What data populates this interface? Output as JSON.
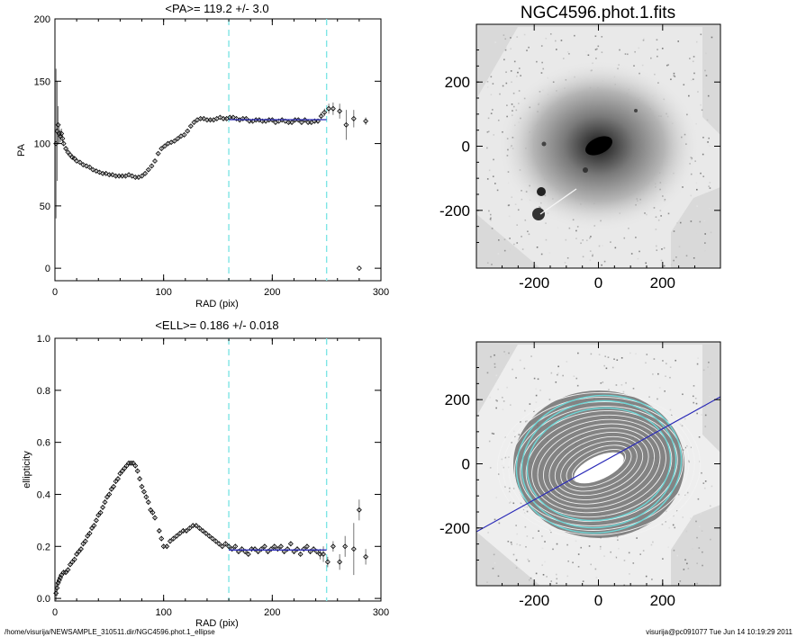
{
  "footer": {
    "path": "/home/visurija/NEWSAMPLE_310511.dir/NGC4596.phot.1_ellipse",
    "user_stamp": "visurija@pc091077  Tue Jun 14 10:19:29 2011"
  },
  "colors": {
    "fit_line": "#2b2bb8",
    "marker": "#000000",
    "dashed_bounds": "#7fe5e5",
    "contours_cyan": "#6fd6d6",
    "image_bg": "#d9d9d9"
  },
  "bounds": {
    "rmin": 160,
    "rmax": 250
  },
  "chart_data": [
    {
      "type": "scatter",
      "title": "<PA>= 119.2 +/-   3.0",
      "xlabel": "RAD (pix)",
      "ylabel": "PA",
      "xlim": [
        0,
        300
      ],
      "ylim": [
        -10,
        200
      ],
      "xticks": [
        "0",
        "100",
        "200",
        "300"
      ],
      "yticks": [
        "0",
        "50",
        "100",
        "150",
        "200"
      ],
      "fit": {
        "value": 119.2,
        "x_range": [
          160,
          250
        ]
      },
      "x": [
        1,
        2,
        3,
        4,
        5,
        6,
        7,
        8,
        10,
        12,
        14,
        16,
        18,
        20,
        23,
        26,
        29,
        32,
        35,
        38,
        41,
        44,
        47,
        50,
        53,
        56,
        59,
        62,
        65,
        68,
        71,
        74,
        77,
        80,
        83,
        86,
        89,
        92,
        95,
        98,
        101,
        104,
        107,
        110,
        113,
        116,
        119,
        122,
        125,
        128,
        131,
        134,
        137,
        140,
        143,
        146,
        149,
        152,
        155,
        158,
        161,
        164,
        167,
        170,
        173,
        176,
        179,
        182,
        185,
        188,
        191,
        194,
        197,
        200,
        203,
        206,
        209,
        212,
        215,
        218,
        221,
        224,
        227,
        230,
        233,
        236,
        239,
        242,
        245,
        248,
        252,
        256,
        262,
        268,
        275,
        280,
        286
      ],
      "y": [
        100,
        110,
        115,
        108,
        106,
        108,
        104,
        100,
        96,
        93,
        91,
        89,
        88,
        86,
        85,
        83,
        82,
        81,
        79,
        78,
        77,
        76,
        76,
        75,
        75,
        74,
        74,
        74,
        74,
        75,
        74,
        73,
        73,
        74,
        76,
        79,
        82,
        86,
        92,
        96,
        98,
        100,
        101,
        102,
        104,
        106,
        107,
        110,
        114,
        117,
        119,
        120,
        120,
        119,
        119,
        119,
        120,
        121,
        120,
        120,
        121,
        121,
        120,
        119,
        120,
        120,
        118,
        118,
        119,
        119,
        118,
        118,
        119,
        119,
        117,
        118,
        119,
        118,
        117,
        117,
        119,
        119,
        117,
        119,
        117,
        117,
        118,
        118,
        122,
        125,
        128,
        128,
        126,
        115,
        120,
        0,
        118
      ],
      "err": [
        60,
        40,
        15,
        8,
        5,
        4,
        3,
        2,
        2,
        1,
        1,
        1,
        1,
        1,
        1,
        1,
        1,
        1,
        1,
        1,
        1,
        1,
        1,
        1,
        1,
        1,
        1,
        1,
        1,
        1,
        1,
        1,
        1,
        1,
        1,
        1,
        1,
        1,
        1,
        1,
        1,
        1,
        1,
        1,
        1,
        1,
        1,
        1,
        1,
        1,
        1,
        1,
        1,
        1,
        1,
        1,
        1,
        1,
        1,
        1,
        1,
        1,
        1,
        1,
        1,
        1,
        1,
        1,
        1,
        1,
        1,
        1,
        1,
        1,
        1,
        1,
        1,
        1,
        1,
        1,
        1,
        1,
        1,
        1,
        1,
        1,
        2,
        2,
        3,
        3,
        4,
        5,
        6,
        12,
        7,
        0,
        3
      ]
    },
    {
      "type": "scatter",
      "title": "<ELL>= 0.186 +/-  0.018",
      "xlabel": "RAD (pix)",
      "ylabel": "ellipticity",
      "xlim": [
        0,
        300
      ],
      "ylim": [
        -0.01,
        1.0
      ],
      "xticks": [
        "0",
        "100",
        "200",
        "300"
      ],
      "yticks": [
        "0.0",
        "0.2",
        "0.4",
        "0.6",
        "0.8",
        "1.0"
      ],
      "fit": {
        "value": 0.186,
        "x_range": [
          160,
          250
        ]
      },
      "x": [
        1,
        2,
        3,
        4,
        5,
        6,
        8,
        10,
        12,
        14,
        16,
        18,
        20,
        22,
        24,
        26,
        28,
        30,
        32,
        34,
        36,
        38,
        40,
        42,
        44,
        46,
        48,
        50,
        52,
        54,
        56,
        58,
        60,
        62,
        64,
        66,
        68,
        70,
        72,
        74,
        76,
        78,
        80,
        82,
        84,
        86,
        88,
        90,
        92,
        96,
        98,
        100,
        103,
        106,
        109,
        112,
        115,
        118,
        121,
        124,
        127,
        130,
        133,
        136,
        139,
        142,
        145,
        148,
        151,
        154,
        157,
        160,
        163,
        166,
        169,
        172,
        175,
        178,
        181,
        184,
        187,
        190,
        193,
        196,
        199,
        202,
        205,
        208,
        211,
        214,
        217,
        220,
        223,
        226,
        229,
        232,
        235,
        238,
        241,
        244,
        247,
        251,
        256,
        262,
        267,
        275,
        280,
        286
      ],
      "y": [
        0.02,
        0.04,
        0.06,
        0.07,
        0.08,
        0.09,
        0.1,
        0.1,
        0.11,
        0.13,
        0.14,
        0.15,
        0.17,
        0.18,
        0.19,
        0.21,
        0.22,
        0.24,
        0.25,
        0.27,
        0.28,
        0.3,
        0.32,
        0.33,
        0.35,
        0.37,
        0.39,
        0.4,
        0.42,
        0.43,
        0.45,
        0.46,
        0.48,
        0.49,
        0.5,
        0.51,
        0.52,
        0.52,
        0.52,
        0.51,
        0.49,
        0.46,
        0.43,
        0.41,
        0.39,
        0.37,
        0.34,
        0.33,
        0.31,
        0.26,
        0.23,
        0.2,
        0.2,
        0.22,
        0.23,
        0.24,
        0.25,
        0.26,
        0.26,
        0.27,
        0.28,
        0.28,
        0.27,
        0.26,
        0.25,
        0.24,
        0.23,
        0.22,
        0.21,
        0.2,
        0.21,
        0.2,
        0.19,
        0.2,
        0.18,
        0.19,
        0.18,
        0.17,
        0.19,
        0.19,
        0.18,
        0.19,
        0.2,
        0.18,
        0.19,
        0.2,
        0.19,
        0.2,
        0.18,
        0.19,
        0.21,
        0.18,
        0.19,
        0.17,
        0.19,
        0.2,
        0.18,
        0.19,
        0.18,
        0.17,
        0.17,
        0.14,
        0.2,
        0.14,
        0.2,
        0.19,
        0.34,
        0.16
      ],
      "err": [
        0.04,
        0.03,
        0.02,
        0.02,
        0.01,
        0.01,
        0.01,
        0.01,
        0.01,
        0.01,
        0.01,
        0.01,
        0.01,
        0.01,
        0.01,
        0.01,
        0.01,
        0.01,
        0.01,
        0.01,
        0.01,
        0.01,
        0.01,
        0.01,
        0.01,
        0.01,
        0.01,
        0.01,
        0.01,
        0.01,
        0.01,
        0.01,
        0.01,
        0.01,
        0.01,
        0.01,
        0.01,
        0.01,
        0.01,
        0.01,
        0.01,
        0.01,
        0.01,
        0.01,
        0.01,
        0.01,
        0.01,
        0.01,
        0.01,
        0.01,
        0.01,
        0.01,
        0.01,
        0.01,
        0.01,
        0.01,
        0.01,
        0.01,
        0.01,
        0.01,
        0.01,
        0.01,
        0.01,
        0.01,
        0.01,
        0.01,
        0.01,
        0.01,
        0.01,
        0.01,
        0.01,
        0.01,
        0.01,
        0.01,
        0.01,
        0.01,
        0.01,
        0.01,
        0.01,
        0.01,
        0.01,
        0.01,
        0.01,
        0.01,
        0.01,
        0.01,
        0.01,
        0.01,
        0.01,
        0.01,
        0.01,
        0.01,
        0.01,
        0.01,
        0.01,
        0.01,
        0.01,
        0.01,
        0.01,
        0.02,
        0.03,
        0.02,
        0.02,
        0.03,
        0.04,
        0.1,
        0.04,
        0.03
      ]
    },
    {
      "type": "image",
      "title": "NGC4596.phot.1.fits",
      "xlim": [
        -380,
        380
      ],
      "ylim": [
        -380,
        380
      ],
      "xticks": [
        "-200",
        "0",
        "200"
      ],
      "yticks": [
        "-200",
        "0",
        "200"
      ]
    },
    {
      "type": "image",
      "title": "",
      "xlim": [
        -380,
        380
      ],
      "ylim": [
        -380,
        380
      ],
      "xticks": [
        "-200",
        "0",
        "200"
      ],
      "yticks": [
        "-200",
        "0",
        "200"
      ],
      "line": {
        "x": [
          -380,
          380
        ],
        "y": [
          -200,
          200
        ]
      }
    }
  ]
}
